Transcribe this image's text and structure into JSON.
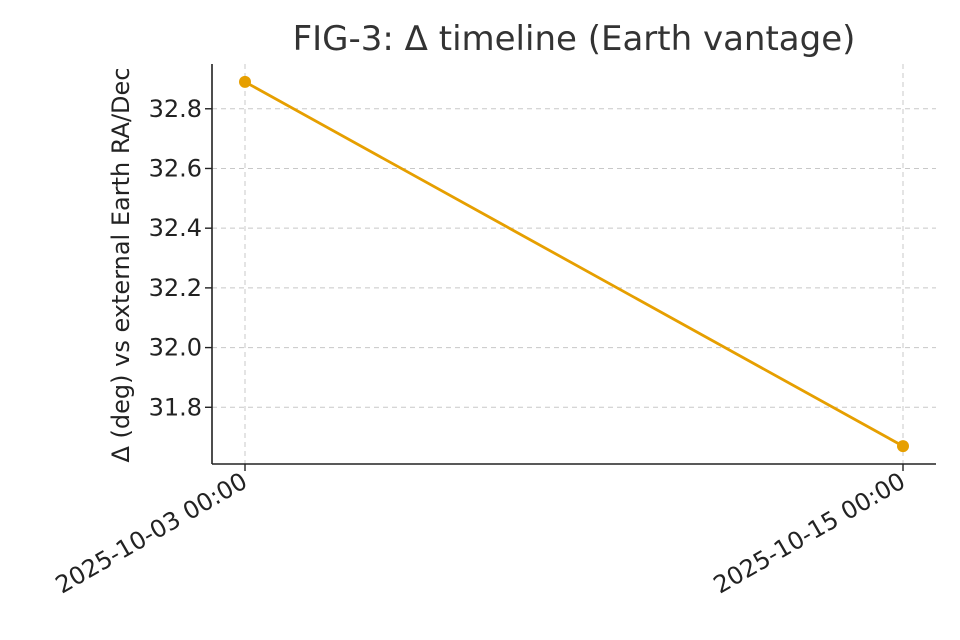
{
  "chart_data": {
    "type": "line",
    "title": "FIG-3: Δ timeline (Earth vantage)",
    "xlabel": "",
    "ylabel": "Δ (deg) vs external Earth RA/Dec",
    "x": [
      "2025-10-03 00:00",
      "2025-10-15 00:00"
    ],
    "x_tick_labels": [
      "2025-10-03 00:00",
      "2025-10-15 00:00"
    ],
    "y_ticks": [
      31.8,
      32.0,
      32.2,
      32.4,
      32.6,
      32.8
    ],
    "y_tick_labels": [
      "31.8",
      "32.0",
      "32.2",
      "32.4",
      "32.6",
      "32.8"
    ],
    "ylim": [
      31.61,
      32.95
    ],
    "grid": true,
    "legend": "none",
    "series": [
      {
        "color": "#E69F00",
        "marker": "circle",
        "values": [
          32.89,
          31.67
        ]
      }
    ]
  }
}
